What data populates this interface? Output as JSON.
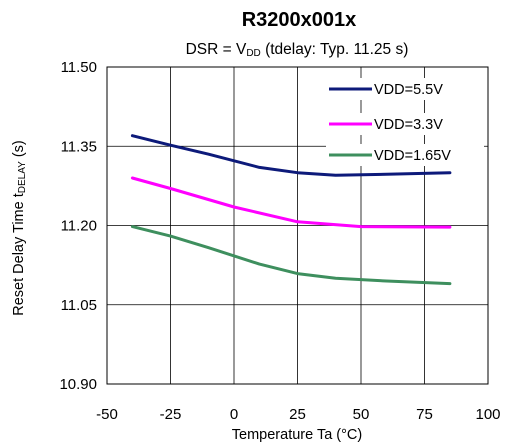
{
  "chart_data": {
    "type": "line",
    "title": "R3200x001x",
    "subtitle": {
      "prefix": "DSR = V",
      "sub": "DD",
      "suffix": " (tdelay: Typ. 11.25 s)"
    },
    "xlabel": "Temperature Ta (°C)",
    "ylabel": {
      "prefix": "Reset Delay Time  t",
      "sub": "DELAY",
      "suffix": " (s)"
    },
    "xlim": [
      -50,
      100
    ],
    "ylim": [
      10.9,
      11.5
    ],
    "xticks": [
      -50,
      -25,
      0,
      25,
      50,
      75,
      100
    ],
    "xtick_labels": [
      "-50",
      "-25",
      "0",
      "25",
      "50",
      "75",
      "100"
    ],
    "yticks": [
      10.9,
      11.05,
      11.2,
      11.35,
      11.5
    ],
    "ytick_labels": [
      "10.90",
      "11.05",
      "11.20",
      "11.35",
      "11.50"
    ],
    "grid": true,
    "legend_position": "top-right",
    "series": [
      {
        "name": "VDD=5.5V",
        "color": "#0d1a7a",
        "x": [
          -40,
          -25,
          -10,
          10,
          25,
          40,
          60,
          85
        ],
        "y": [
          11.37,
          11.352,
          11.335,
          11.31,
          11.3,
          11.295,
          11.297,
          11.3
        ]
      },
      {
        "name": "VDD=3.3V",
        "color": "#ff00ff",
        "x": [
          -40,
          -25,
          0,
          25,
          50,
          85
        ],
        "y": [
          11.29,
          11.27,
          11.235,
          11.207,
          11.198,
          11.197
        ]
      },
      {
        "name": "VDD=1.65V",
        "color": "#3e8f5e",
        "x": [
          -40,
          -25,
          -10,
          10,
          25,
          40,
          60,
          85
        ],
        "y": [
          11.198,
          11.18,
          11.158,
          11.127,
          11.109,
          11.1,
          11.095,
          11.09
        ]
      }
    ]
  }
}
